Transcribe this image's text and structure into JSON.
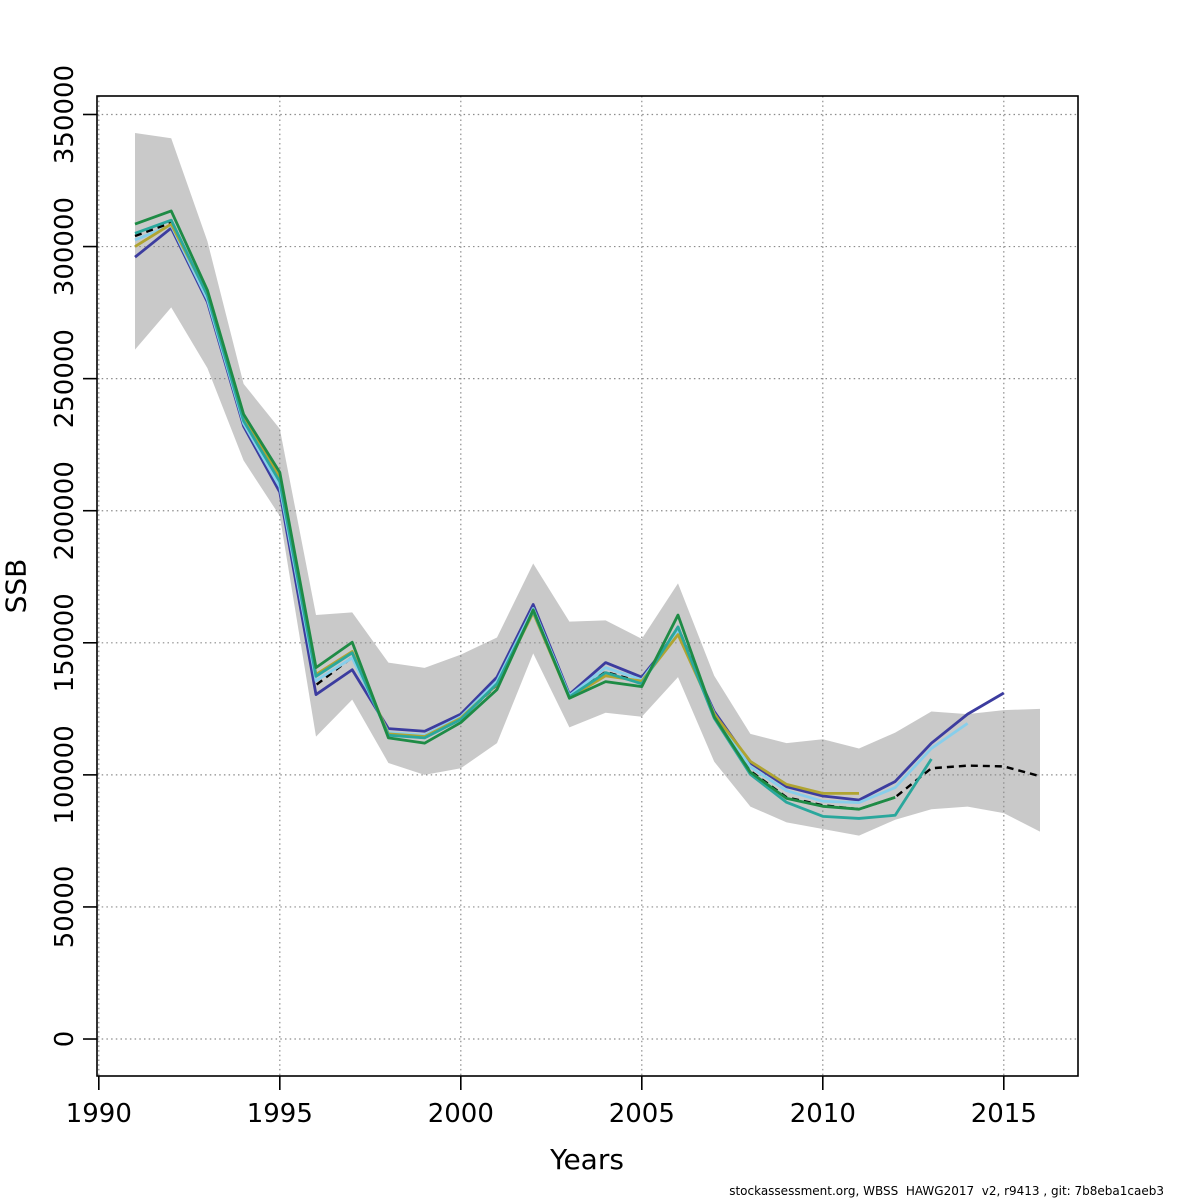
{
  "labels": {
    "xlabel": "Years",
    "ylabel": "SSB",
    "footer": "stockassessment.org, WBSS  HAWG2017  v2, r9413 , git: 7b8eba1caeb3"
  },
  "chart_data": {
    "type": "line",
    "title": "",
    "xlabel": "Years",
    "ylabel": "SSB",
    "footer": "stockassessment.org, WBSS  HAWG2017  v2, r9413 , git: 7b8eba1caeb3",
    "grid": "on",
    "legend": "none",
    "x_ticks": [
      1990,
      1995,
      2000,
      2005,
      2010,
      2015
    ],
    "y_ticks": [
      0,
      50000,
      100000,
      150000,
      200000,
      250000,
      300000,
      350000
    ],
    "xlim": [
      1989.95,
      2017.05
    ],
    "ylim": [
      -14000,
      357000
    ],
    "grid_color": "#8c8c8c",
    "axis_color": "#000000",
    "band": {
      "name": "confidence-band",
      "color": "#c9c9c9",
      "years": [
        1991,
        1992,
        1993,
        1994,
        1995,
        1996,
        1997,
        1998,
        1999,
        2000,
        2001,
        2002,
        2003,
        2004,
        2005,
        2006,
        2007,
        2008,
        2009,
        2010,
        2011,
        2012,
        2013,
        2014,
        2015,
        2016
      ],
      "lo": [
        261000,
        277000,
        254000,
        219000,
        198000,
        114500,
        128500,
        104500,
        100000,
        102500,
        112000,
        146000,
        118000,
        123500,
        122000,
        137000,
        105000,
        88000,
        82000,
        79500,
        77000,
        83000,
        87000,
        88000,
        85500,
        78500
      ],
      "hi": [
        343000,
        341000,
        302000,
        248000,
        231000,
        160500,
        161500,
        142500,
        140500,
        145500,
        152000,
        180000,
        158000,
        158500,
        151500,
        172500,
        137500,
        115500,
        112000,
        113500,
        110000,
        116000,
        124000,
        123000,
        124500,
        125000
      ]
    },
    "series": [
      {
        "name": "run-final-2016-black-dashed",
        "color": "#000000",
        "dash": "7,5",
        "width": 2.4,
        "years": [
          1991,
          1992,
          1993,
          1994,
          1995,
          1996,
          1997,
          1998,
          1999,
          2000,
          2001,
          2002,
          2003,
          2004,
          2005,
          2006,
          2007,
          2008,
          2009,
          2010,
          2011,
          2012,
          2013,
          2014,
          2015,
          2016
        ],
        "values": [
          304000,
          309000,
          281000,
          234000,
          210000,
          134000,
          144500,
          115500,
          114000,
          121300,
          134000,
          162000,
          129500,
          139000,
          135000,
          156000,
          122500,
          101500,
          91500,
          88500,
          87000,
          91500,
          102500,
          103500,
          103200,
          99500
        ]
      },
      {
        "name": "retro-run-2015-purple",
        "color": "#3c3c9f",
        "dash": "",
        "width": 2.8,
        "years": [
          1991,
          1992,
          1993,
          1994,
          1995,
          1996,
          1997,
          1998,
          1999,
          2000,
          2001,
          2002,
          2003,
          2004,
          2005,
          2006,
          2007,
          2008,
          2009,
          2010,
          2011,
          2012,
          2013,
          2014,
          2015
        ],
        "values": [
          296000,
          307000,
          279000,
          232000,
          207000,
          130400,
          139800,
          117500,
          116500,
          123000,
          137000,
          164500,
          130500,
          142500,
          137000,
          154000,
          124000,
          104500,
          95500,
          92000,
          90500,
          97500,
          112000,
          123000,
          131000
        ]
      },
      {
        "name": "retro-run-2014-lightblue",
        "color": "#87ceeb",
        "dash": "",
        "width": 2.8,
        "years": [
          1991,
          1992,
          1993,
          1994,
          1995,
          1996,
          1997,
          1998,
          1999,
          2000,
          2001,
          2002,
          2003,
          2004,
          2005,
          2006,
          2007,
          2008,
          2009,
          2010,
          2011,
          2012,
          2013,
          2014
        ],
        "values": [
          302500,
          308000,
          280000,
          233000,
          209000,
          135600,
          144300,
          116000,
          115000,
          122000,
          135500,
          163000,
          130000,
          140600,
          136000,
          154500,
          123200,
          103000,
          94000,
          90000,
          89500,
          95200,
          110000,
          119500
        ]
      },
      {
        "name": "retro-run-2011-olive",
        "color": "#b0a431",
        "dash": "",
        "width": 2.8,
        "years": [
          1991,
          1992,
          1993,
          1994,
          1995,
          1996,
          1997,
          1998,
          1999,
          2000,
          2001,
          2002,
          2003,
          2004,
          2005,
          2006,
          2007,
          2008,
          2009,
          2010,
          2011
        ],
        "values": [
          300000,
          308500,
          282000,
          235000,
          212500,
          138000,
          146700,
          115500,
          114500,
          121500,
          134200,
          161400,
          129200,
          137500,
          135500,
          153100,
          123000,
          105100,
          96400,
          93000,
          93000
        ]
      },
      {
        "name": "retro-run-2013-teal",
        "color": "#2aa79c",
        "dash": "",
        "width": 2.8,
        "years": [
          1991,
          1992,
          1993,
          1994,
          1995,
          1996,
          1997,
          1998,
          1999,
          2000,
          2001,
          2002,
          2003,
          2004,
          2005,
          2006,
          2007,
          2008,
          2009,
          2010,
          2011,
          2012,
          2013
        ],
        "values": [
          305000,
          310000,
          281500,
          234000,
          211000,
          137300,
          146200,
          115000,
          114000,
          121000,
          134500,
          162000,
          129500,
          138700,
          134500,
          156000,
          121500,
          100200,
          89600,
          84300,
          83500,
          84700,
          106000
        ]
      },
      {
        "name": "retro-run-2012-green",
        "color": "#1e8b45",
        "dash": "",
        "width": 2.8,
        "years": [
          1991,
          1992,
          1993,
          1994,
          1995,
          1996,
          1997,
          1998,
          1999,
          2000,
          2001,
          2002,
          2003,
          2004,
          2005,
          2006,
          2007,
          2008,
          2009,
          2010,
          2011,
          2012
        ],
        "values": [
          308500,
          313500,
          283500,
          236500,
          214500,
          140600,
          150200,
          114000,
          112000,
          119800,
          132300,
          162500,
          129000,
          135300,
          133400,
          160500,
          122000,
          101000,
          91100,
          88100,
          87000,
          91500
        ]
      }
    ]
  }
}
